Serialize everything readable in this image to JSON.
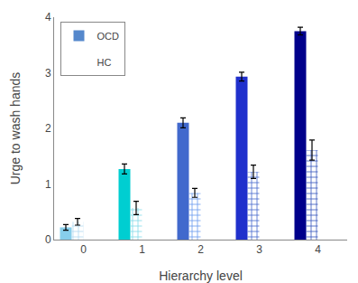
{
  "chart_data": {
    "type": "bar",
    "categories": [
      "0",
      "1",
      "2",
      "3",
      "4"
    ],
    "series": [
      {
        "name": "OCD",
        "color": "#5588CC",
        "colors": [
          "#87CEEB",
          "#00CED1",
          "#4169CD",
          "#2030CC",
          "#00008B"
        ],
        "values": [
          0.22,
          1.27,
          2.1,
          2.93,
          3.75
        ],
        "errors": [
          0.05,
          0.09,
          0.09,
          0.08,
          0.07
        ]
      },
      {
        "name": "HC",
        "color": "#88BBEE",
        "marker": "cross",
        "colors": [
          "#B0D8F0",
          "#7FD9E8",
          "#6699EE",
          "#4466CC",
          "#3355BB"
        ],
        "values": [
          0.32,
          0.57,
          0.84,
          1.22,
          1.61
        ],
        "errors": [
          0.06,
          0.12,
          0.08,
          0.12,
          0.18
        ]
      }
    ],
    "xlabel": "Hierarchy level",
    "ylabel": "Urge to wash hands",
    "ylim": [
      0,
      4
    ],
    "yticks": [
      0,
      1,
      2,
      3,
      4
    ],
    "grid": false,
    "legend": "upper left"
  }
}
